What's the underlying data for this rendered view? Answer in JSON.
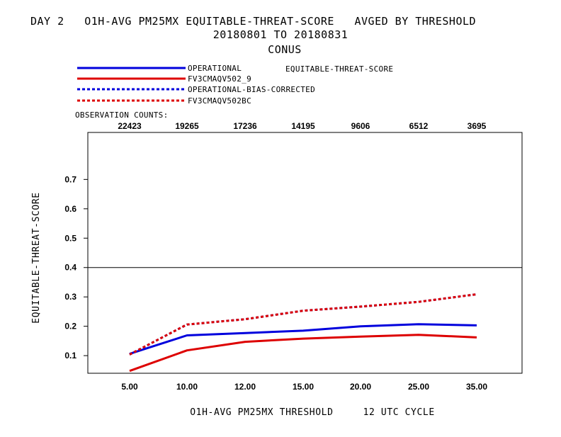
{
  "header": {
    "title_line1": "DAY 2   O1H-AVG PM25MX EQUITABLE-THREAT-SCORE   AVGED BY THRESHOLD",
    "title_line2": "20180801 TO 20180831",
    "title_line3": "CONUS"
  },
  "legend": {
    "score_label": "EQUITABLE-THREAT-SCORE",
    "obs_counts_label": "OBSERVATION COUNTS:"
  },
  "colors": {
    "blue": "#0000dd",
    "red": "#dd0000",
    "black": "#000000"
  },
  "chart_data": {
    "type": "line",
    "categories": [
      "5.00",
      "10.00",
      "12.00",
      "15.00",
      "20.00",
      "25.00",
      "35.00"
    ],
    "observation_counts": [
      "22423",
      "19265",
      "17236",
      "14195",
      "9606",
      "6512",
      "3695"
    ],
    "xlabel": "O1H-AVG PM25MX THRESHOLD     12 UTC CYCLE",
    "ylabel": "EQUITABLE-THREAT-SCORE",
    "ylim": [
      0.04,
      0.86
    ],
    "yticks": [
      "0.1",
      "0.2",
      "0.3",
      "0.4",
      "0.5",
      "0.6",
      "0.7"
    ],
    "reference_line": 0.4,
    "series": [
      {
        "name": "OPERATIONAL",
        "color": "#0000dd",
        "dash": "solid",
        "values": [
          0.106,
          0.169,
          0.177,
          0.185,
          0.2,
          0.207,
          0.203
        ]
      },
      {
        "name": "FV3CMAQV502_9",
        "color": "#dd0000",
        "dash": "solid",
        "values": [
          0.048,
          0.118,
          0.147,
          0.158,
          0.165,
          0.171,
          0.162
        ]
      },
      {
        "name": "OPERATIONAL-BIAS-CORRECTED",
        "color": "#0000dd",
        "dash": "dashed",
        "values": [
          0.104,
          0.206,
          0.224,
          0.253,
          0.267,
          0.283,
          0.309
        ]
      },
      {
        "name": "FV3CMAQV502BC",
        "color": "#dd0000",
        "dash": "dashed",
        "values": [
          0.104,
          0.206,
          0.224,
          0.253,
          0.267,
          0.283,
          0.309
        ]
      }
    ]
  }
}
